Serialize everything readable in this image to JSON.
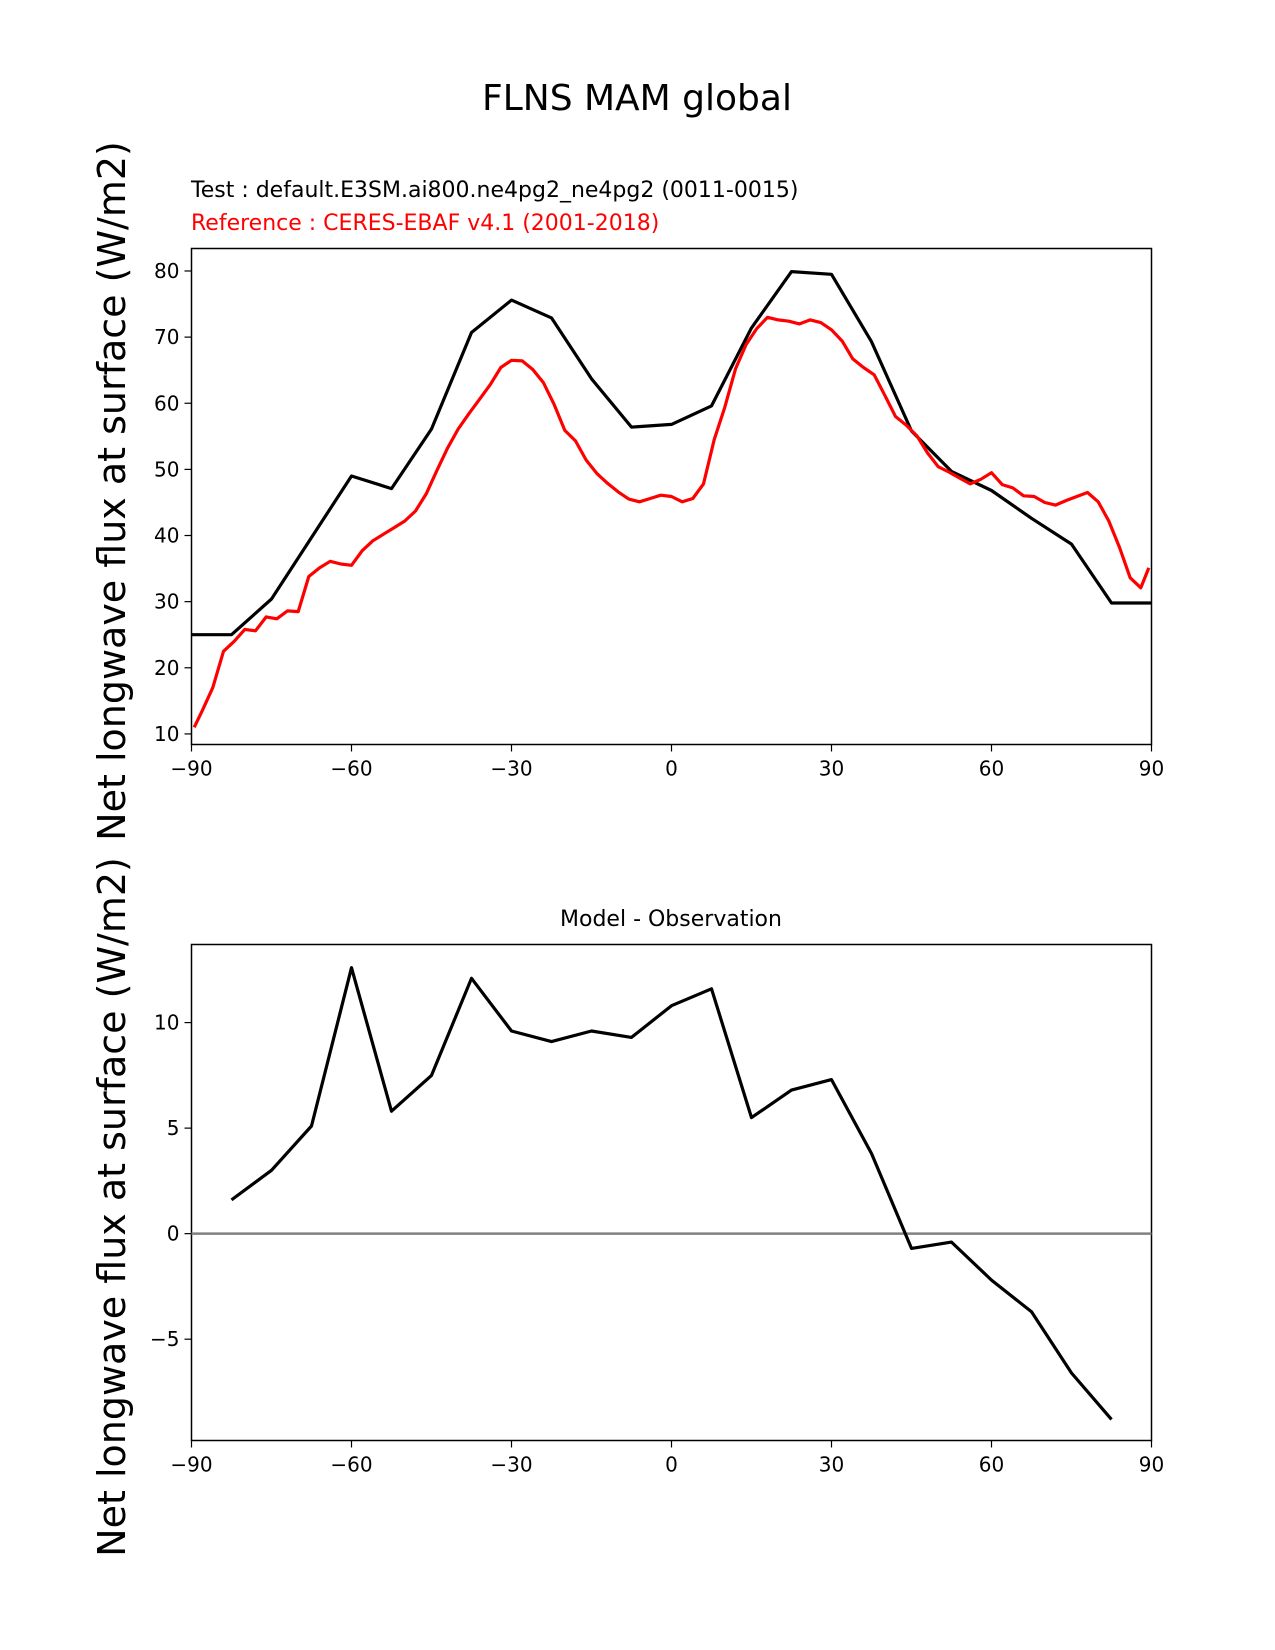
{
  "chart_data": [
    {
      "type": "line",
      "title": "FLNS MAM global",
      "test_label": "Test : default.E3SM.ai800.ne4pg2_ne4pg2 (0011-0015)",
      "reference_label": "Reference : CERES-EBAF v4.1 (2001-2018)",
      "ylabel": "Net longwave flux at surface (W/m2)",
      "xlim": [
        -90,
        90
      ],
      "ylim": [
        8.4,
        83.4
      ],
      "xticks": [
        -90,
        -60,
        -30,
        0,
        30,
        60,
        90
      ],
      "yticks": [
        10,
        20,
        30,
        40,
        50,
        60,
        70,
        80
      ],
      "grid": false,
      "series": [
        {
          "color": "#000000",
          "x": [
            -90,
            -82.5,
            -75,
            -67.5,
            -60,
            -52.5,
            -45,
            -37.5,
            -30,
            -22.5,
            -15,
            -7.5,
            0,
            7.5,
            15,
            22.5,
            30,
            37.5,
            45,
            52.5,
            60,
            67.5,
            75,
            82.5,
            90
          ],
          "y": [
            25,
            25,
            30.4,
            39.7,
            49,
            47.1,
            56.1,
            70.7,
            75.6,
            72.9,
            63.7,
            56.4,
            56.8,
            59.6,
            71.4,
            79.9,
            79.5,
            69.3,
            55.8,
            49.7,
            46.8,
            42.6,
            38.7,
            29.8,
            29.8
          ]
        },
        {
          "color": "#ff0000",
          "x": [
            -89.5,
            -88,
            -86,
            -84,
            -82,
            -80,
            -78,
            -76,
            -74,
            -72,
            -70,
            -68,
            -66,
            -64,
            -62,
            -60,
            -58,
            -56,
            -54,
            -52,
            -50,
            -48,
            -46,
            -44,
            -42,
            -40,
            -38,
            -36,
            -34,
            -32,
            -30,
            -28,
            -26,
            -24,
            -22,
            -20,
            -18,
            -16,
            -14,
            -12,
            -10,
            -8,
            -6,
            -4,
            -2,
            0,
            2,
            4,
            6,
            8,
            10,
            12,
            14,
            16,
            18,
            20,
            22,
            24,
            26,
            28,
            30,
            32,
            34,
            36,
            38,
            40,
            42,
            44,
            46,
            48,
            50,
            52,
            54,
            56,
            58,
            60,
            62,
            64,
            66,
            68,
            70,
            72,
            74,
            76,
            78,
            80,
            82,
            84,
            86,
            88,
            89.5
          ],
          "y": [
            11,
            13.5,
            17,
            22.5,
            24,
            25.8,
            25.6,
            27.7,
            27.4,
            28.6,
            28.5,
            33.8,
            35.1,
            36.1,
            35.7,
            35.5,
            37.7,
            39.2,
            40.2,
            41.2,
            42.2,
            43.7,
            46.3,
            49.8,
            53.2,
            56.1,
            58.4,
            60.6,
            62.8,
            65.4,
            66.5,
            66.4,
            65.1,
            63.1,
            59.8,
            55.9,
            54.3,
            51.4,
            49.4,
            47.9,
            46.6,
            45.5,
            45.1,
            45.6,
            46.1,
            45.9,
            45.1,
            45.6,
            47.8,
            54.5,
            59.4,
            65.2,
            68.9,
            71.3,
            73,
            72.6,
            72.4,
            72,
            72.6,
            72.2,
            71.1,
            69.4,
            66.7,
            65.4,
            64.3,
            61.2,
            58,
            56.7,
            55.1,
            52.5,
            50.4,
            49.6,
            48.7,
            47.8,
            48.5,
            49.5,
            47.7,
            47.2,
            46,
            45.9,
            45,
            44.6,
            45.3,
            45.9,
            46.5,
            45.1,
            42.2,
            38.2,
            33.6,
            32.1,
            35.1
          ]
        }
      ]
    },
    {
      "type": "line",
      "title": "Model - Observation",
      "ylabel": "Net longwave flux at surface (W/m2)",
      "xlim": [
        -90,
        90
      ],
      "ylim": [
        -9.8,
        13.7
      ],
      "xticks": [
        -90,
        -60,
        -30,
        0,
        30,
        60,
        90
      ],
      "yticks": [
        -5,
        0,
        5,
        10
      ],
      "grid": false,
      "zero_line_color": "#808080",
      "series": [
        {
          "color": "#000000",
          "x": [
            -82.5,
            -75,
            -67.5,
            -60,
            -52.5,
            -45,
            -37.5,
            -30,
            -22.5,
            -15,
            -7.5,
            0,
            7.5,
            15,
            22.5,
            30,
            37.5,
            45,
            52.5,
            60,
            67.5,
            75,
            82.5
          ],
          "y": [
            1.6,
            3,
            5.1,
            12.6,
            5.8,
            7.5,
            12.1,
            9.6,
            9.1,
            9.6,
            9.3,
            10.8,
            11.6,
            5.5,
            6.8,
            7.3,
            3.8,
            -0.7,
            -0.4,
            -2.2,
            -3.7,
            -6.6,
            -8.8
          ]
        }
      ]
    }
  ]
}
